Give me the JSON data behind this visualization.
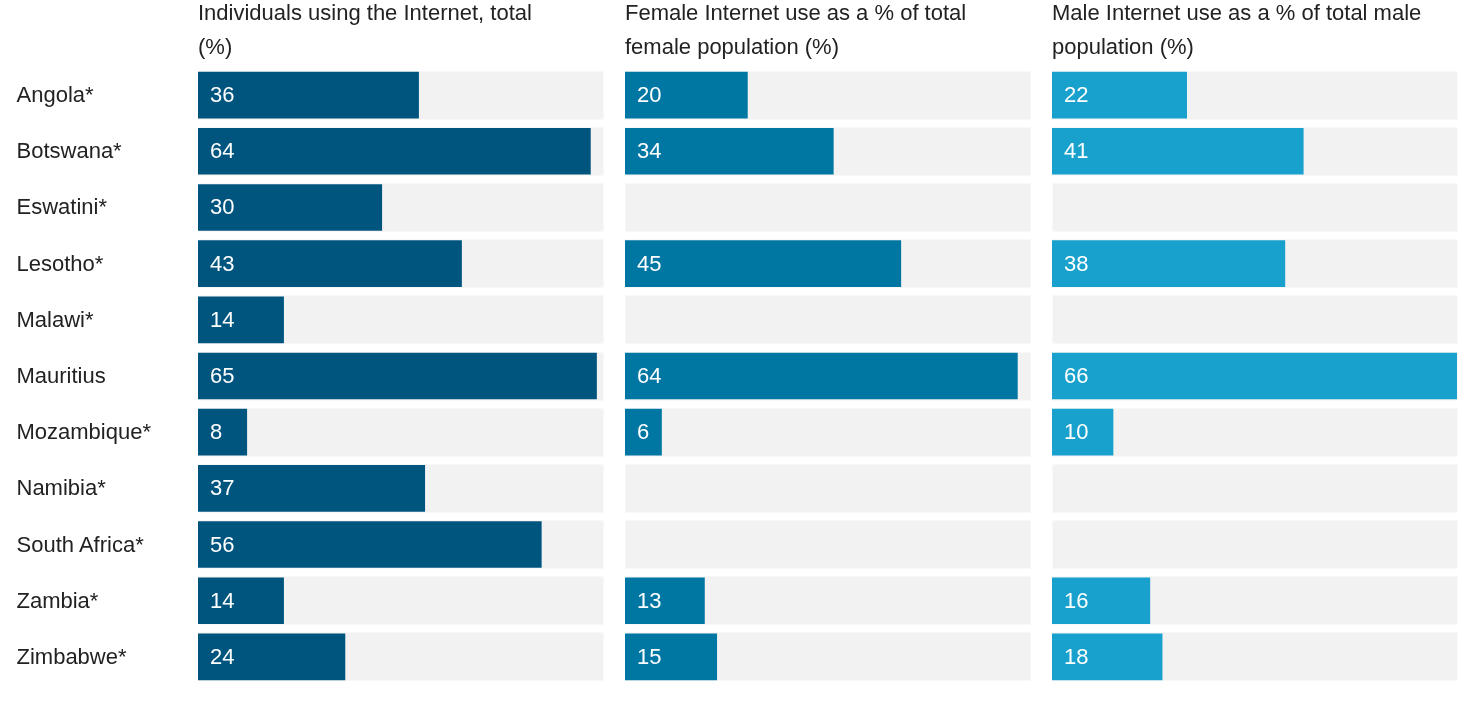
{
  "chart_data": [
    {
      "type": "bar",
      "orientation": "horizontal",
      "title": "Individuals using the Internet, total (%)",
      "categories": [
        "Angola*",
        "Botswana*",
        "Eswatini*",
        "Lesotho*",
        "Malawi*",
        "Mauritius",
        "Mozambique*",
        "Namibia*",
        "South Africa*",
        "Zambia*",
        "Zimbabwe*"
      ],
      "values": [
        36,
        64,
        30,
        43,
        14,
        65,
        8,
        37,
        56,
        14,
        24
      ],
      "color": "#00557f",
      "data_labels": true,
      "grid": "y",
      "tick_labels": "y"
    },
    {
      "type": "bar",
      "orientation": "horizontal",
      "title": "Female Internet use as a % of total female population (%)",
      "values": [
        20,
        34,
        null,
        45,
        null,
        64,
        6,
        null,
        null,
        13,
        15
      ],
      "color": "#0077a3",
      "data_labels": true,
      "grid": "y",
      "tick_labels": false
    },
    {
      "type": "bar",
      "orientation": "horizontal",
      "title": "Male Internet use as a % of total male population (%)",
      "values": [
        22,
        41,
        null,
        38,
        null,
        66,
        10,
        null,
        null,
        16,
        18
      ],
      "color": "#19a1cd",
      "data_labels": true,
      "grid": "y",
      "tick_labels": false
    }
  ]
}
